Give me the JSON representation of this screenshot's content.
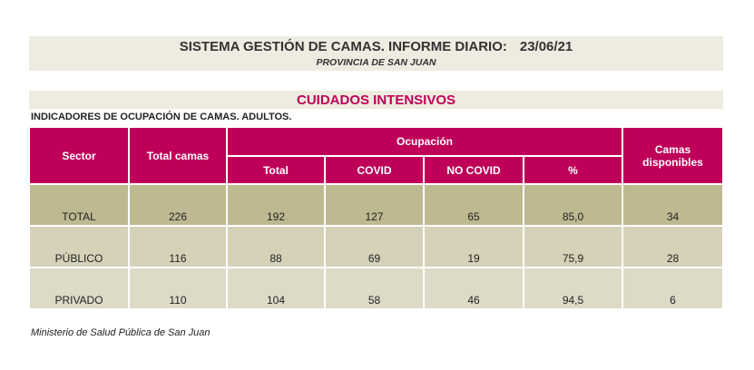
{
  "header": {
    "title": "SISTEMA GESTIÓN DE CAMAS. INFORME DIARIO:",
    "date": "23/06/21",
    "subtitle": "PROVINCIA DE SAN JUAN"
  },
  "section": "CUIDADOS INTENSIVOS",
  "indicators": "INDICADORES DE OCUPACIÓN DE CAMAS. ADULTOS.",
  "table": {
    "headers": {
      "sector": "Sector",
      "total_camas": "Total camas",
      "ocupacion": "Ocupación",
      "total": "Total",
      "covid": "COVID",
      "no_covid": "NO COVID",
      "pct": "%",
      "disponibles": "Camas disponibles"
    },
    "rows": [
      {
        "sector": "TOTAL",
        "total_camas": "226",
        "total": "192",
        "covid": "127",
        "no_covid": "65",
        "pct": "85,0",
        "disponibles": "34"
      },
      {
        "sector": "PÚBLICO",
        "total_camas": "116",
        "total": "88",
        "covid": "69",
        "no_covid": "19",
        "pct": "75,9",
        "disponibles": "28"
      },
      {
        "sector": "PRIVADO",
        "total_camas": "110",
        "total": "104",
        "covid": "58",
        "no_covid": "46",
        "pct": "94,5",
        "disponibles": "6"
      }
    ]
  },
  "footer": "Ministerio de Salud Pública de San Juan",
  "colors": {
    "accent": "#BE0059",
    "total_row": "#BEB991",
    "publico_row": "#D6D1B9",
    "privado_row": "#DEDAC8",
    "band": "#EEEBE0"
  }
}
